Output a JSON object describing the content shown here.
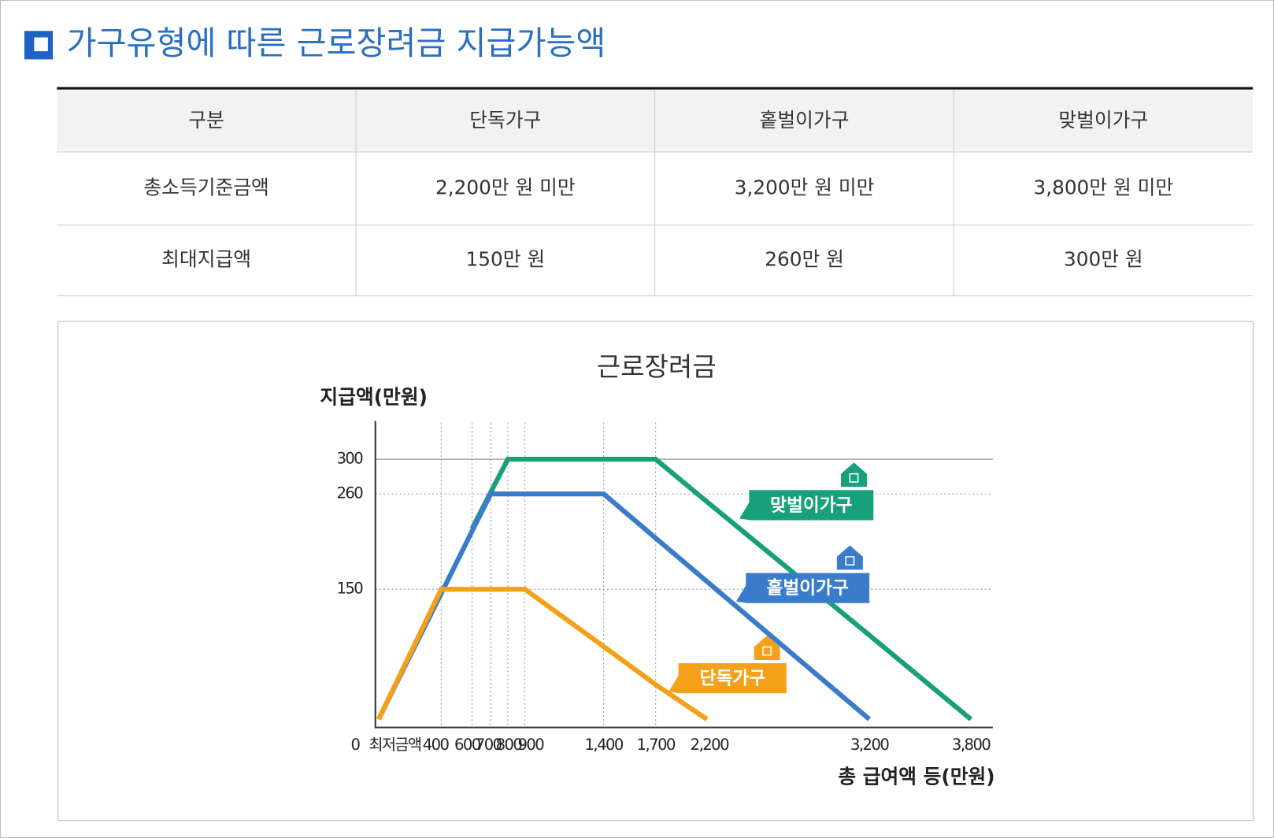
{
  "heading": {
    "title": "가구유형에 따른 근로장려금 지급가능액"
  },
  "table": {
    "headers": [
      "구분",
      "단독가구",
      "홑벌이가구",
      "맞벌이가구"
    ],
    "rows": [
      [
        "총소득기준금액",
        "2,200만 원 미만",
        "3,200만 원 미만",
        "3,800만 원 미만"
      ],
      [
        "최대지급액",
        "150만 원",
        "260만 원",
        "300만 원"
      ]
    ]
  },
  "chart_data": {
    "type": "line",
    "title": "근로장려금",
    "y_label": "지급액(만원)",
    "x_label": "총 급여액 등(만원)",
    "categories": [
      "0",
      "최저금액",
      "400",
      "600",
      "700",
      "800",
      "900",
      "1,400",
      "1,700",
      "2,200",
      "3,200",
      "3,800"
    ],
    "series": [
      {
        "name": "맞벌이가구",
        "color": "#17a07a",
        "values": [
          null,
          null,
          null,
          220,
          262,
          300,
          300,
          300,
          300,
          251,
          97,
          0
        ]
      },
      {
        "name": "홑벌이가구",
        "color": "#3a7ccb",
        "values": [
          0,
          38,
          145,
          217,
          260,
          260,
          260,
          260,
          209,
          159,
          0,
          null
        ]
      },
      {
        "name": "단독가구",
        "color": "#f5a019",
        "values": [
          0,
          39,
          150,
          150,
          150,
          150,
          150,
          84,
          40,
          0,
          null,
          null
        ]
      }
    ],
    "ylim": [
      0,
      330
    ],
    "yticks": [
      150,
      260,
      300
    ],
    "grid": true
  }
}
